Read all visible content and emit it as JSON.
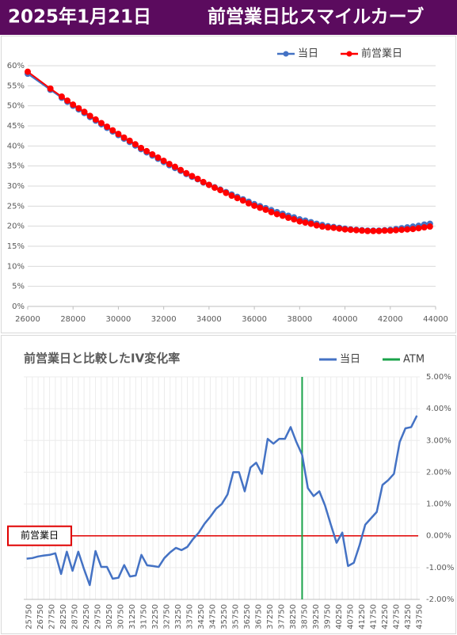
{
  "header": {
    "date": "2025年1月21日",
    "title": "前営業日比スマイルカーブ"
  },
  "chart_data": [
    {
      "type": "line",
      "x": [
        26000,
        27000,
        27500,
        27750,
        28000,
        28250,
        28500,
        28750,
        29000,
        29250,
        29500,
        29750,
        30000,
        30250,
        30500,
        30750,
        31000,
        31250,
        31500,
        31750,
        32000,
        32250,
        32500,
        32750,
        33000,
        33250,
        33500,
        33750,
        34000,
        34250,
        34500,
        34750,
        35000,
        35250,
        35500,
        35750,
        36000,
        36250,
        36500,
        36750,
        37000,
        37250,
        37500,
        37750,
        38000,
        38250,
        38500,
        38750,
        39000,
        39250,
        39500,
        39750,
        40000,
        40250,
        40500,
        40750,
        41000,
        41250,
        41500,
        41750,
        42000,
        42250,
        42500,
        42750,
        43000,
        43250,
        43500,
        43750
      ],
      "series": [
        {
          "name": "当日",
          "color": "#4472c4",
          "values": [
            58.0,
            54.0,
            52.0,
            51.0,
            50.0,
            49.1,
            48.2,
            47.2,
            46.3,
            45.4,
            44.5,
            43.6,
            42.7,
            41.8,
            41.0,
            40.1,
            39.2,
            38.4,
            37.6,
            36.8,
            36.0,
            35.2,
            34.5,
            33.8,
            33.0,
            32.3,
            31.7,
            30.9,
            30.3,
            29.7,
            29.1,
            28.5,
            27.9,
            27.3,
            26.7,
            26.1,
            25.5,
            25.0,
            24.5,
            24.0,
            23.5,
            23.1,
            22.6,
            22.2,
            21.7,
            21.4,
            21.0,
            20.6,
            20.3,
            20.0,
            19.8,
            19.6,
            19.4,
            19.2,
            19.1,
            19.0,
            18.9,
            18.9,
            18.9,
            19.0,
            19.1,
            19.3,
            19.5,
            19.7,
            19.9,
            20.1,
            20.4,
            20.6
          ]
        },
        {
          "name": "前営業日",
          "color": "#ff0000",
          "values": [
            58.5,
            54.3,
            52.3,
            51.3,
            50.3,
            49.4,
            48.5,
            47.5,
            46.6,
            45.7,
            44.8,
            43.9,
            43.0,
            42.1,
            41.3,
            40.4,
            39.5,
            38.7,
            37.9,
            37.1,
            36.3,
            35.5,
            34.8,
            34.0,
            33.2,
            32.5,
            31.8,
            31.0,
            30.3,
            29.6,
            29.0,
            28.3,
            27.6,
            27.0,
            26.4,
            25.7,
            25.1,
            24.6,
            24.1,
            23.5,
            23.0,
            22.6,
            22.1,
            21.7,
            21.2,
            20.9,
            20.6,
            20.2,
            19.9,
            19.7,
            19.6,
            19.4,
            19.2,
            19.1,
            19.0,
            18.9,
            18.8,
            18.8,
            18.8,
            18.9,
            18.9,
            19.0,
            19.1,
            19.2,
            19.3,
            19.5,
            19.7,
            19.9
          ]
        }
      ],
      "xlim": [
        26000,
        44000
      ],
      "xticks": [
        26000,
        28000,
        30000,
        32000,
        34000,
        36000,
        38000,
        40000,
        42000,
        44000
      ],
      "ylim": [
        0,
        60
      ],
      "yticks": [
        {
          "value": 0,
          "label": "0%"
        },
        {
          "value": 5,
          "label": "5%"
        },
        {
          "value": 10,
          "label": "10%"
        },
        {
          "value": 15,
          "label": "15%"
        },
        {
          "value": 20,
          "label": "20%"
        },
        {
          "value": 25,
          "label": "25%"
        },
        {
          "value": 30,
          "label": "30%"
        },
        {
          "value": 35,
          "label": "35%"
        },
        {
          "value": 40,
          "label": "40%"
        },
        {
          "value": 45,
          "label": "45%"
        },
        {
          "value": 50,
          "label": "50%"
        },
        {
          "value": 55,
          "label": "55%"
        },
        {
          "value": 60,
          "label": "60%"
        }
      ],
      "grid": true,
      "markers": true,
      "legend": "top-right"
    },
    {
      "type": "line",
      "title": "前営業日と比較したIV変化率",
      "categories": [
        25750,
        null,
        26750,
        null,
        27750,
        null,
        28250,
        null,
        28750,
        null,
        29250,
        null,
        29750,
        null,
        30250,
        null,
        30750,
        null,
        31250,
        null,
        31750,
        null,
        32250,
        null,
        32750,
        null,
        33250,
        null,
        33750,
        null,
        34250,
        null,
        34750,
        null,
        35250,
        null,
        35750,
        null,
        36250,
        null,
        36750,
        null,
        37250,
        null,
        37750,
        null,
        38250,
        null,
        38750,
        null,
        39250,
        null,
        39750,
        null,
        40250,
        null,
        40750,
        null,
        41250,
        null,
        41750,
        null,
        42250,
        null,
        42750,
        null,
        43250,
        null,
        43750
      ],
      "series": [
        {
          "name": "当日",
          "color": "#4472c4",
          "axis": "y2",
          "values": [
            -0.72,
            -0.7,
            -0.65,
            -0.62,
            -0.6,
            -0.55,
            -1.2,
            -0.5,
            -1.1,
            -0.5,
            -1.05,
            -1.55,
            -0.48,
            -0.98,
            -0.98,
            -1.35,
            -1.32,
            -0.92,
            -1.28,
            -1.25,
            -0.6,
            -0.93,
            -0.95,
            -0.98,
            -0.7,
            -0.52,
            -0.38,
            -0.45,
            -0.35,
            -0.1,
            0.1,
            0.38,
            0.6,
            0.85,
            1.0,
            1.3,
            2.0,
            2.0,
            1.4,
            2.15,
            2.3,
            1.95,
            3.05,
            2.9,
            3.05,
            3.05,
            3.42,
            2.95,
            2.55,
            1.5,
            1.25,
            1.4,
            0.95,
            0.35,
            -0.22,
            0.1,
            -0.95,
            -0.85,
            -0.3,
            0.35,
            0.55,
            0.75,
            1.6,
            1.75,
            1.95,
            2.95,
            3.38,
            3.42,
            3.78
          ]
        }
      ],
      "atm": {
        "name": "ATM",
        "color": "#1aa34a",
        "x": 38750
      },
      "reference": {
        "label": "前営業日",
        "value": 0,
        "color": "#e00000"
      },
      "y2lim": [
        -2,
        5
      ],
      "y2ticks": [
        {
          "value": -2,
          "label": "-2.00%"
        },
        {
          "value": -1,
          "label": "-1.00%"
        },
        {
          "value": 0,
          "label": "0.00%"
        },
        {
          "value": 1,
          "label": "1.00%"
        },
        {
          "value": 2,
          "label": "2.00%"
        },
        {
          "value": 3,
          "label": "3.00%"
        },
        {
          "value": 4,
          "label": "4.00%"
        },
        {
          "value": 5,
          "label": "5.00%"
        }
      ],
      "grid": true,
      "markers": false,
      "legend": "top-right"
    }
  ]
}
